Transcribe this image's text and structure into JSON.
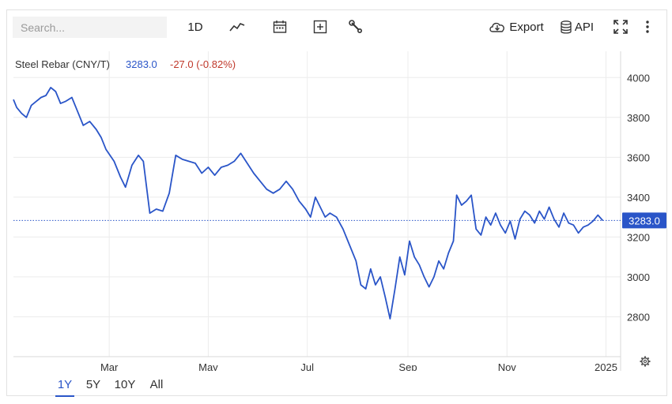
{
  "toolbar": {
    "search_placeholder": "Search...",
    "interval_label": "1D",
    "export_label": "Export",
    "api_label": "API",
    "icons": [
      "line-chart-icon",
      "calendar-icon",
      "add-compare-icon",
      "wrench-icon",
      "cloud-download-icon",
      "database-icon",
      "fullscreen-icon",
      "more-vertical-icon"
    ]
  },
  "quote": {
    "name": "Steel Rebar (CNY/T)",
    "price": "3283.0",
    "change": "-27.0 (-0.82%)",
    "price_color": "#2a55c8",
    "change_color": "#c0392b"
  },
  "range_buttons": {
    "items": [
      "1Y",
      "5Y",
      "10Y",
      "All"
    ],
    "selected": "1Y"
  },
  "chart_data": {
    "type": "line",
    "title": "Steel Rebar (CNY/T)",
    "xlabel": "",
    "ylabel": "",
    "x_tick_labels": [
      "Mar",
      "May",
      "Jul",
      "Sep",
      "Nov",
      "2025"
    ],
    "y_tick_labels": [
      "2800",
      "3000",
      "3200",
      "3400",
      "3600",
      "3800",
      "4000"
    ],
    "ylim": [
      2600,
      4100
    ],
    "xlim": [
      "2024-01-02",
      "2025-01-10"
    ],
    "grid": true,
    "last_value": 3283.0,
    "last_value_label": "3283.0",
    "line_color": "#2a55c8",
    "series": [
      {
        "name": "Steel Rebar",
        "points": [
          [
            "2024-01-02",
            3890
          ],
          [
            "2024-01-04",
            3850
          ],
          [
            "2024-01-07",
            3820
          ],
          [
            "2024-01-10",
            3800
          ],
          [
            "2024-01-13",
            3860
          ],
          [
            "2024-01-16",
            3880
          ],
          [
            "2024-01-19",
            3900
          ],
          [
            "2024-01-22",
            3910
          ],
          [
            "2024-01-25",
            3950
          ],
          [
            "2024-01-28",
            3930
          ],
          [
            "2024-01-31",
            3870
          ],
          [
            "2024-02-03",
            3880
          ],
          [
            "2024-02-07",
            3900
          ],
          [
            "2024-02-10",
            3840
          ],
          [
            "2024-02-14",
            3760
          ],
          [
            "2024-02-18",
            3780
          ],
          [
            "2024-02-22",
            3740
          ],
          [
            "2024-02-25",
            3700
          ],
          [
            "2024-02-28",
            3640
          ],
          [
            "2024-03-04",
            3580
          ],
          [
            "2024-03-08",
            3500
          ],
          [
            "2024-03-11",
            3450
          ],
          [
            "2024-03-15",
            3560
          ],
          [
            "2024-03-19",
            3610
          ],
          [
            "2024-03-22",
            3580
          ],
          [
            "2024-03-26",
            3320
          ],
          [
            "2024-03-30",
            3340
          ],
          [
            "2024-04-03",
            3330
          ],
          [
            "2024-04-07",
            3420
          ],
          [
            "2024-04-11",
            3610
          ],
          [
            "2024-04-15",
            3590
          ],
          [
            "2024-04-19",
            3580
          ],
          [
            "2024-04-23",
            3570
          ],
          [
            "2024-04-27",
            3520
          ],
          [
            "2024-05-01",
            3550
          ],
          [
            "2024-05-05",
            3510
          ],
          [
            "2024-05-09",
            3550
          ],
          [
            "2024-05-13",
            3560
          ],
          [
            "2024-05-17",
            3580
          ],
          [
            "2024-05-21",
            3620
          ],
          [
            "2024-05-25",
            3570
          ],
          [
            "2024-05-29",
            3520
          ],
          [
            "2024-06-02",
            3480
          ],
          [
            "2024-06-06",
            3440
          ],
          [
            "2024-06-10",
            3420
          ],
          [
            "2024-06-14",
            3440
          ],
          [
            "2024-06-18",
            3480
          ],
          [
            "2024-06-22",
            3440
          ],
          [
            "2024-06-26",
            3380
          ],
          [
            "2024-06-30",
            3340
          ],
          [
            "2024-07-03",
            3300
          ],
          [
            "2024-07-06",
            3400
          ],
          [
            "2024-07-09",
            3350
          ],
          [
            "2024-07-12",
            3300
          ],
          [
            "2024-07-15",
            3320
          ],
          [
            "2024-07-19",
            3300
          ],
          [
            "2024-07-23",
            3240
          ],
          [
            "2024-07-27",
            3160
          ],
          [
            "2024-07-31",
            3080
          ],
          [
            "2024-08-03",
            2960
          ],
          [
            "2024-08-06",
            2940
          ],
          [
            "2024-08-09",
            3040
          ],
          [
            "2024-08-12",
            2960
          ],
          [
            "2024-08-15",
            3000
          ],
          [
            "2024-08-18",
            2900
          ],
          [
            "2024-08-21",
            2790
          ],
          [
            "2024-08-24",
            2940
          ],
          [
            "2024-08-27",
            3100
          ],
          [
            "2024-08-30",
            3010
          ],
          [
            "2024-09-02",
            3180
          ],
          [
            "2024-09-05",
            3100
          ],
          [
            "2024-09-08",
            3060
          ],
          [
            "2024-09-11",
            3000
          ],
          [
            "2024-09-14",
            2950
          ],
          [
            "2024-09-17",
            3000
          ],
          [
            "2024-09-20",
            3080
          ],
          [
            "2024-09-23",
            3040
          ],
          [
            "2024-09-26",
            3120
          ],
          [
            "2024-09-29",
            3180
          ],
          [
            "2024-10-01",
            3410
          ],
          [
            "2024-10-04",
            3360
          ],
          [
            "2024-10-07",
            3380
          ],
          [
            "2024-10-10",
            3410
          ],
          [
            "2024-10-13",
            3240
          ],
          [
            "2024-10-16",
            3210
          ],
          [
            "2024-10-19",
            3300
          ],
          [
            "2024-10-22",
            3260
          ],
          [
            "2024-10-25",
            3320
          ],
          [
            "2024-10-28",
            3260
          ],
          [
            "2024-10-31",
            3220
          ],
          [
            "2024-11-03",
            3280
          ],
          [
            "2024-11-06",
            3190
          ],
          [
            "2024-11-09",
            3290
          ],
          [
            "2024-11-12",
            3330
          ],
          [
            "2024-11-15",
            3310
          ],
          [
            "2024-11-18",
            3270
          ],
          [
            "2024-11-21",
            3330
          ],
          [
            "2024-11-24",
            3290
          ],
          [
            "2024-11-27",
            3350
          ],
          [
            "2024-11-30",
            3290
          ],
          [
            "2024-12-03",
            3250
          ],
          [
            "2024-12-06",
            3320
          ],
          [
            "2024-12-09",
            3270
          ],
          [
            "2024-12-12",
            3260
          ],
          [
            "2024-12-15",
            3220
          ],
          [
            "2024-12-18",
            3250
          ],
          [
            "2024-12-21",
            3260
          ],
          [
            "2024-12-24",
            3280
          ],
          [
            "2024-12-27",
            3310
          ],
          [
            "2024-12-30",
            3283
          ]
        ]
      }
    ]
  }
}
